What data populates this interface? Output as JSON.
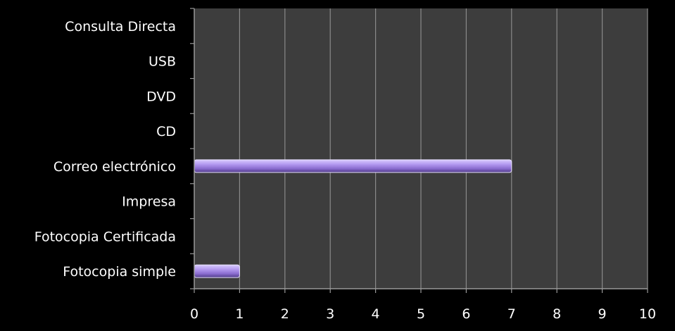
{
  "chart_data": {
    "type": "bar",
    "orientation": "horizontal",
    "categories": [
      "Consulta Directa",
      "USB",
      "DVD",
      "CD",
      "Correo electrónico",
      "Impresa",
      "Fotocopia Certificada",
      "Fotocopia simple"
    ],
    "values": [
      0,
      0,
      0,
      0,
      7,
      0,
      0,
      1
    ],
    "xlim": [
      0,
      10
    ],
    "xticks": [
      "0",
      "1",
      "2",
      "3",
      "4",
      "5",
      "6",
      "7",
      "8",
      "9",
      "10"
    ],
    "grid": "vertical",
    "title": "",
    "xlabel": "",
    "ylabel": "",
    "colors": {
      "background": "#000000",
      "plot_area": "#3d3d3d",
      "gridline": "#8a8a8a",
      "bar": "#9b7fd9",
      "text": "#ffffff"
    }
  }
}
